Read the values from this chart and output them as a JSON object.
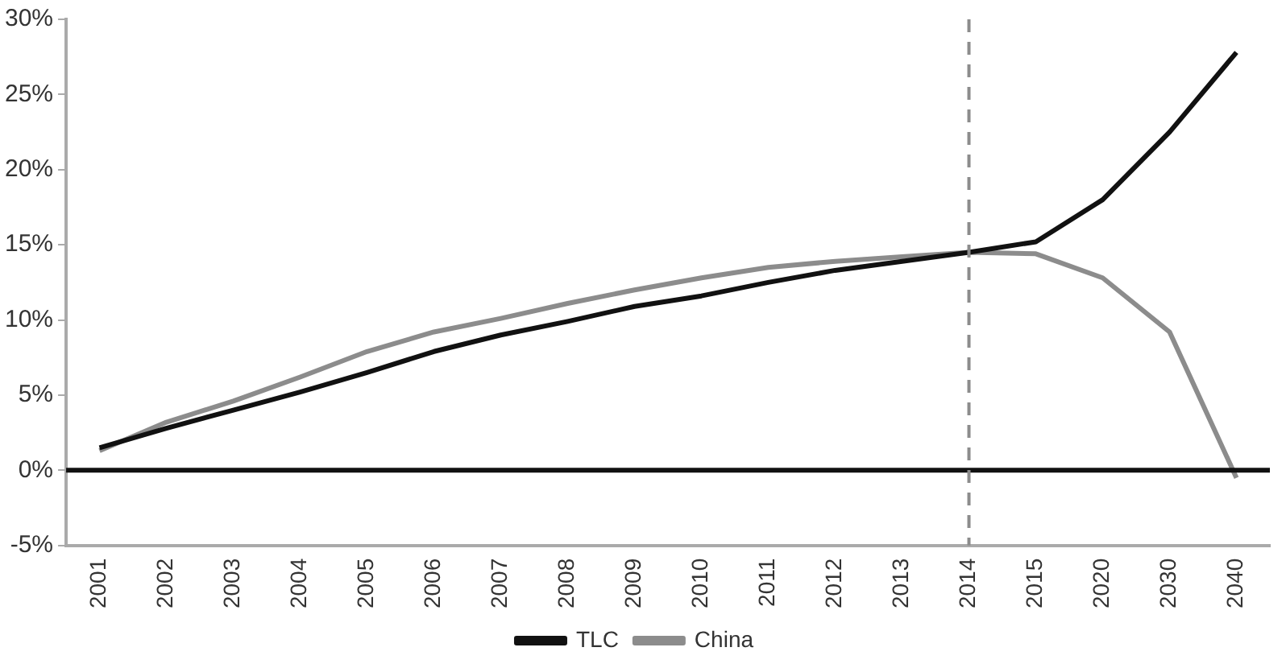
{
  "chart_data": {
    "type": "line",
    "categories": [
      "2001",
      "2002",
      "2003",
      "2004",
      "2005",
      "2006",
      "2007",
      "2008",
      "2009",
      "2010",
      "2011",
      "2012",
      "2013",
      "2014",
      "2015",
      "2020",
      "2030",
      "2040"
    ],
    "series": [
      {
        "name": "TLC",
        "color": "#111111",
        "values": [
          1.5,
          2.8,
          4.0,
          5.2,
          6.5,
          7.9,
          9.0,
          9.9,
          10.9,
          11.6,
          12.5,
          13.3,
          13.9,
          14.5,
          15.2,
          18.0,
          22.5,
          27.8
        ]
      },
      {
        "name": "China",
        "color": "#8c8c8c",
        "values": [
          1.3,
          3.2,
          4.6,
          6.2,
          7.9,
          9.2,
          10.1,
          11.1,
          12.0,
          12.8,
          13.5,
          13.9,
          14.2,
          14.5,
          14.4,
          12.8,
          9.2,
          -0.5
        ]
      }
    ],
    "ylim": [
      -5,
      30
    ],
    "yticks": [
      {
        "value": -5,
        "label": "-5%"
      },
      {
        "value": 0,
        "label": "0%"
      },
      {
        "value": 5,
        "label": "5%"
      },
      {
        "value": 10,
        "label": "10%"
      },
      {
        "value": 15,
        "label": "15%"
      },
      {
        "value": 20,
        "label": "20%"
      },
      {
        "value": 25,
        "label": "25%"
      },
      {
        "value": 30,
        "label": "30%"
      }
    ],
    "ref_lines": [
      {
        "axis": "y",
        "value": 0,
        "color": "#111111",
        "line_style": "solid"
      },
      {
        "axis": "x",
        "value": "2014",
        "color": "#8c8c8c",
        "line_style": "dashed"
      }
    ],
    "grid": false,
    "legend": "bottom",
    "marker": "none",
    "line_style": "solid"
  }
}
